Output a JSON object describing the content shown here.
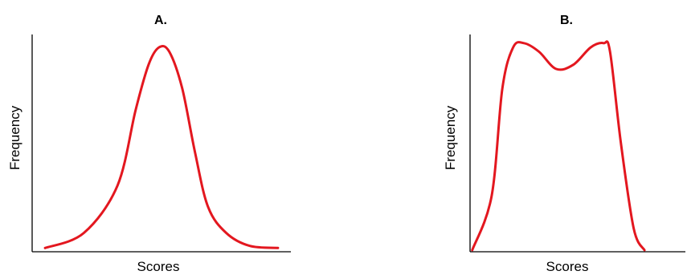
{
  "curve_color": "#e3171f",
  "chart_data": [
    {
      "type": "line",
      "title": "A.",
      "xlabel": "Scores",
      "ylabel": "Frequency",
      "grid": false,
      "xlim": [
        0,
        1
      ],
      "ylim": [
        0,
        1
      ],
      "series": [
        {
          "x": [
            0.05,
            0.2,
            0.33,
            0.4,
            0.45,
            0.49,
            0.53,
            0.58,
            0.63,
            0.68,
            0.75,
            0.84,
            0.95
          ],
          "y": [
            0.01,
            0.08,
            0.3,
            0.65,
            0.86,
            0.94,
            0.92,
            0.75,
            0.45,
            0.2,
            0.08,
            0.02,
            0.01
          ]
        }
      ]
    },
    {
      "type": "line",
      "title": "B.",
      "xlabel": "Scores",
      "ylabel": "Frequency",
      "grid": false,
      "xlim": [
        0,
        1
      ],
      "ylim": [
        0,
        1
      ],
      "series": [
        {
          "x": [
            0.01,
            0.1,
            0.15,
            0.2,
            0.25,
            0.32,
            0.4,
            0.48,
            0.56,
            0.62,
            0.65,
            0.7,
            0.76,
            0.81
          ],
          "y": [
            0.0,
            0.25,
            0.75,
            0.94,
            0.96,
            0.92,
            0.84,
            0.86,
            0.94,
            0.96,
            0.92,
            0.5,
            0.1,
            0.0
          ]
        }
      ]
    }
  ]
}
